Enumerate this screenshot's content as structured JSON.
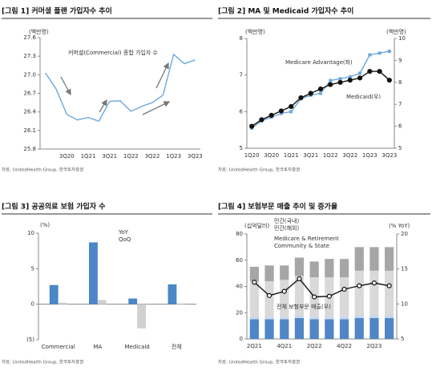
{
  "chart_data": [
    {
      "type": "line",
      "title": "[그림 1] 커머셜 플랜 가입자수 추이",
      "y_label": "(백만명)",
      "categories": [
        null,
        null,
        "3Q20",
        null,
        "1Q21",
        null,
        "3Q21",
        null,
        "1Q22",
        null,
        "3Q22",
        null,
        "1Q23",
        null,
        "3Q23"
      ],
      "series": [
        {
          "name": "커머셜(Commercial) 종합 가입자 수",
          "color": "#6fa8dc",
          "values": [
            27.03,
            26.77,
            26.36,
            26.27,
            26.31,
            26.25,
            26.57,
            26.58,
            26.41,
            26.49,
            26.55,
            26.67,
            27.33,
            27.18,
            27.24
          ]
        }
      ],
      "ylim": [
        25.8,
        27.6
      ],
      "yticks": [
        25.8,
        26.1,
        26.4,
        26.7,
        {
          "value": 27,
          "label": "27.0"
        },
        27.3,
        27.6
      ],
      "source": "자료: UnitedHealth Group, 한국투자증권"
    },
    {
      "type": "line",
      "title": "[그림 2] MA 및 Medicaid 가입자수 추이",
      "y_label": "(백만명)",
      "y2_label": "(백만명)",
      "categories": [
        "1Q20",
        null,
        "3Q20",
        null,
        "1Q21",
        null,
        "3Q21",
        null,
        "1Q22",
        null,
        "3Q22",
        null,
        "1Q23",
        null,
        "3Q23"
      ],
      "series": [
        {
          "name": "Medicare Advantage(좌)",
          "color": "#6fa8dc",
          "marker": "square",
          "values": [
            5.55,
            5.75,
            5.85,
            5.95,
            6.0,
            6.35,
            6.45,
            6.5,
            6.85,
            6.9,
            6.95,
            7.05,
            7.55,
            7.6,
            7.65
          ]
        },
        {
          "name": "Medicaid(우)",
          "color": "#111111",
          "marker": "circle",
          "axis": "y2",
          "values": [
            6.0,
            6.3,
            6.5,
            6.7,
            6.9,
            7.3,
            7.5,
            7.7,
            7.9,
            8.0,
            8.1,
            8.2,
            8.5,
            8.5,
            8.1
          ]
        }
      ],
      "ylim": [
        5,
        8
      ],
      "yticks": [
        5,
        6,
        7,
        8
      ],
      "y2lim": [
        5,
        10
      ],
      "y2ticks": [
        5,
        6,
        7,
        8,
        9,
        10
      ],
      "source": "자료: UnitedHealth Group, 한국투자증권"
    },
    {
      "type": "bar",
      "title": "[그림 3] 공공의료 보험 가입자 수",
      "y_label": "(%)",
      "categories": [
        "Commercial",
        "MA",
        "Medicaid",
        "전체"
      ],
      "series": [
        {
          "name": "YoY",
          "color": "#4a86c8",
          "values": [
            2.7,
            8.7,
            0.8,
            2.8
          ]
        },
        {
          "name": "QoQ",
          "color": "#d0d0d0",
          "values": [
            0.2,
            0.6,
            -3.4,
            0.1
          ]
        }
      ],
      "ylim": [
        -5,
        10
      ],
      "yticks": [
        {
          "value": -5,
          "label": "(5)"
        },
        0,
        5,
        10
      ],
      "source": "자료: UnitedHealth Group, 한국투자증권"
    },
    {
      "type": "stacked_bar",
      "title": "[그림 4] 보험부문 매출 추이 및 증가율",
      "y_label": "(십억달러)",
      "y2_label": "(% YoY)",
      "categories": [
        "2Q21",
        null,
        "4Q21",
        null,
        "2Q22",
        null,
        "4Q22",
        null,
        "2Q23",
        null
      ],
      "series": [
        {
          "name": "민간(국내)",
          "color": "#4f86c6",
          "values": [
            15,
            15,
            15,
            16,
            15,
            15,
            15,
            16,
            16,
            16
          ]
        },
        {
          "name": "민간(해외)",
          "color": "#c5d8ee",
          "values": [
            2,
            2,
            2,
            2,
            2,
            2,
            2,
            2,
            2,
            2
          ]
        },
        {
          "name": "Medicare & Retirement",
          "color": "#d9d9d9",
          "values": [
            27,
            27,
            28,
            30,
            30,
            30,
            30,
            34,
            34,
            34
          ]
        },
        {
          "name": "Community & State",
          "color": "#a6a6a6",
          "values": [
            11,
            12,
            11,
            14,
            12,
            14,
            14,
            18,
            18,
            18
          ]
        },
        {
          "name": "전체 보험부문 매출(우)",
          "color": "#111111",
          "type": "line",
          "marker": "circle",
          "axis": "y2",
          "values": [
            13.1,
            11.2,
            11.8,
            13.6,
            11.0,
            11.1,
            12.1,
            12.6,
            13.0,
            12.6
          ]
        }
      ],
      "ylim": [
        0,
        80
      ],
      "yticks": [
        0,
        20,
        40,
        60,
        80
      ],
      "y2lim": [
        5,
        20
      ],
      "y2ticks": [
        5,
        10,
        15,
        20
      ],
      "source": "자료: UnitedHealth Group, 한국투자증권"
    }
  ]
}
